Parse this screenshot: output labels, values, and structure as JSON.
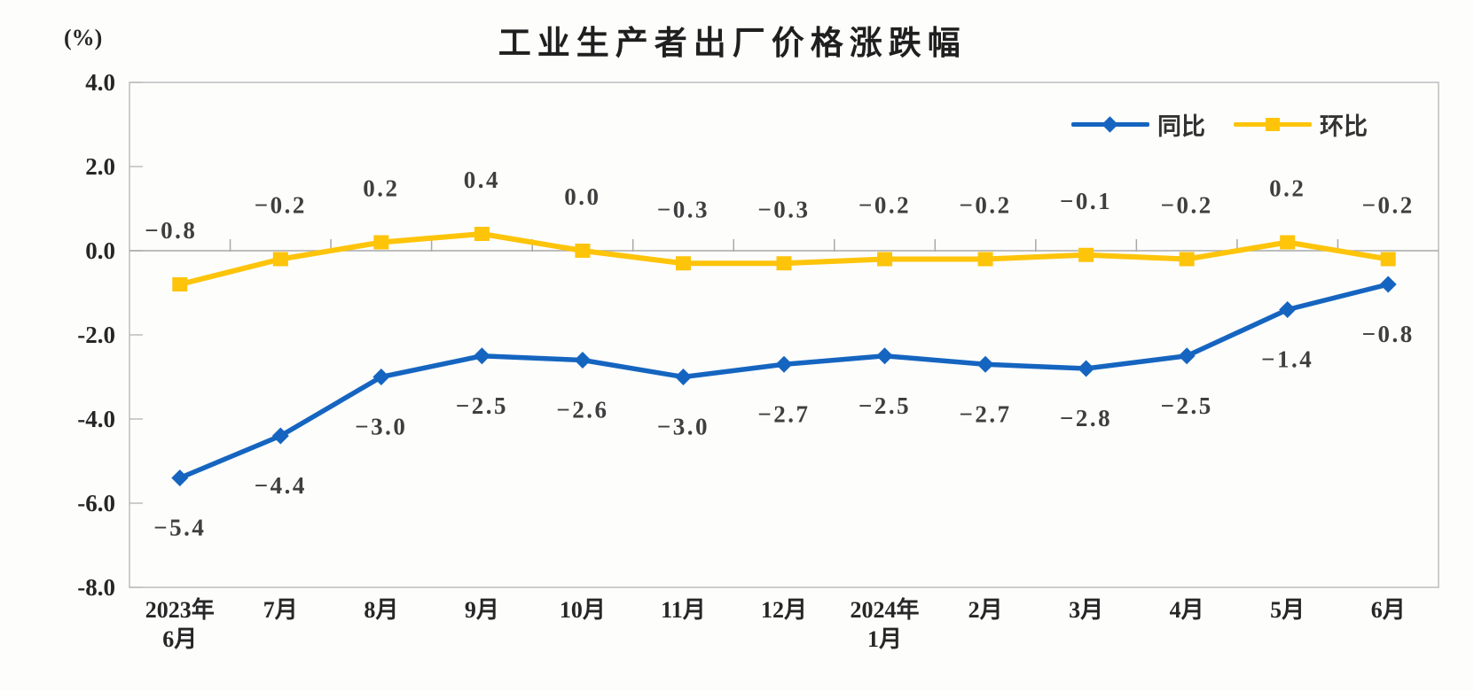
{
  "title": "工业生产者出厂价格涨跌幅",
  "unit_label": "(%)",
  "legend": {
    "yoy_label": "同比",
    "mom_label": "环比"
  },
  "colors": {
    "yoy_series": "#1565C0",
    "mom_series": "#FDC40A",
    "plot_border": "#BDBDBD",
    "zero_line": "#A8A8A8",
    "data_label_text": "#3F3F3F",
    "axis_label_text": "#262626",
    "title_text": "#1F1F1F"
  },
  "chart_data": {
    "type": "line",
    "title": "工业生产者出厂价格涨跌幅",
    "unit": "(%)",
    "categories": [
      "2023年\n6月",
      "7月",
      "8月",
      "9月",
      "10月",
      "11月",
      "12月",
      "2024年\n1月",
      "2月",
      "3月",
      "4月",
      "5月",
      "6月"
    ],
    "series": [
      {
        "key": "yoy",
        "name": "同比",
        "color": "#1565C0",
        "marker": "diamond",
        "label_side": "below",
        "values": [
          -5.4,
          -4.4,
          -3.0,
          -2.5,
          -2.6,
          -3.0,
          -2.7,
          -2.5,
          -2.7,
          -2.8,
          -2.5,
          -1.4,
          -0.8
        ],
        "labels": [
          "-5.4",
          "-4.4",
          "-3.0",
          "-2.5",
          "-2.6",
          "-3.0",
          "-2.7",
          "-2.5",
          "-2.7",
          "-2.8",
          "-2.5",
          "-1.4",
          "-0.8"
        ]
      },
      {
        "key": "mom",
        "name": "环比",
        "color": "#FDC40A",
        "marker": "square",
        "label_side": "above",
        "values": [
          -0.8,
          -0.2,
          0.2,
          0.4,
          0.0,
          -0.3,
          -0.3,
          -0.2,
          -0.2,
          -0.1,
          -0.2,
          0.2,
          -0.2
        ],
        "labels": [
          "-0.8",
          "-0.2",
          "0.2",
          "0.4",
          "0.0",
          "-0.3",
          "-0.3",
          "-0.2",
          "-0.2",
          "-0.1",
          "-0.2",
          "0.2",
          "-0.2"
        ]
      }
    ],
    "y_axis": {
      "min": -8.0,
      "max": 4.0,
      "step": 2.0,
      "tick_labels": [
        "4.0",
        "2.0",
        "0.0",
        "-2.0",
        "-4.0",
        "-6.0",
        "-8.0"
      ]
    },
    "grid": "zero-line-only",
    "legend_position": "top-right-inside"
  }
}
